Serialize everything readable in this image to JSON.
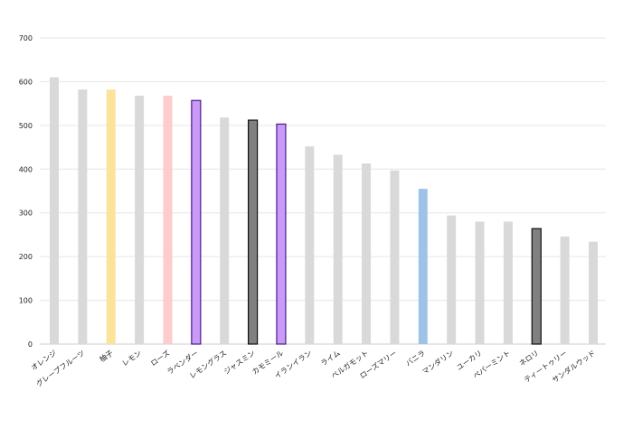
{
  "chart_data": {
    "type": "bar",
    "title": "",
    "xlabel": "",
    "ylabel": "",
    "ylim": [
      0,
      700
    ],
    "yticks": [
      0,
      100,
      200,
      300,
      400,
      500,
      600,
      700
    ],
    "grid": true,
    "legend": "none",
    "categories": [
      "オレンジ",
      "グレープフルーツ",
      "柚子",
      "レモン",
      "ローズ",
      "ラベンダー",
      "レモングラス",
      "ジャスミン",
      "カモミール",
      "イランイラン",
      "ライム",
      "ベルガモット",
      "ローズマリー",
      "バニラ",
      "マンダリン",
      "ユーカリ",
      "ペパーミント",
      "ネロリ",
      "ティートゥリー",
      "サンダルウッド"
    ],
    "values": [
      610,
      582,
      582,
      568,
      568,
      557,
      518,
      512,
      503,
      452,
      433,
      413,
      397,
      355,
      294,
      280,
      280,
      264,
      246,
      234
    ],
    "fill_colors": [
      "#d9d9d9",
      "#d9d9d9",
      "#fbe39a",
      "#d9d9d9",
      "#fdcccc",
      "#c99af6",
      "#d9d9d9",
      "#808080",
      "#c99af6",
      "#d9d9d9",
      "#d9d9d9",
      "#d9d9d9",
      "#d9d9d9",
      "#9fc3e7",
      "#d9d9d9",
      "#d9d9d9",
      "#d9d9d9",
      "#808080",
      "#d9d9d9",
      "#d9d9d9"
    ],
    "stroke_colors": [
      "none",
      "none",
      "none",
      "none",
      "none",
      "#4b1a8c",
      "none",
      "#111111",
      "#4b1a8c",
      "none",
      "none",
      "none",
      "none",
      "none",
      "none",
      "none",
      "none",
      "#111111",
      "none",
      "none"
    ]
  }
}
